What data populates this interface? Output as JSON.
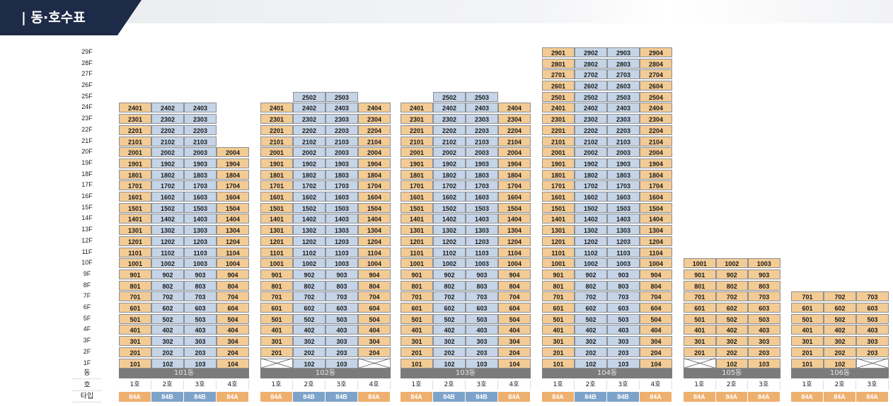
{
  "title": "| 동·호수표",
  "row_labels": {
    "dong": "동",
    "ho": "호",
    "type": "타입"
  },
  "floors": [
    "1F",
    "2F",
    "3F",
    "4F",
    "5F",
    "6F",
    "7F",
    "8F",
    "9F",
    "10F",
    "11F",
    "12F",
    "13F",
    "14F",
    "15F",
    "16F",
    "17F",
    "18F",
    "19F",
    "20F",
    "21F",
    "22F",
    "23F",
    "24F",
    "25F",
    "26F",
    "27F",
    "28F",
    "29F"
  ],
  "colors": {
    "type_84A": "#f3cb94",
    "type_84B": "#c5d4e6",
    "building_bar": "#7b7b7b",
    "title_bg": "#1d2a48"
  },
  "buildings": [
    {
      "name": "101동",
      "lines": [
        {
          "ho": "1호",
          "type": "84A",
          "floors": [
            1,
            24
          ],
          "missing": []
        },
        {
          "ho": "2호",
          "type": "84B",
          "floors": [
            1,
            24
          ],
          "missing": []
        },
        {
          "ho": "3호",
          "type": "84B",
          "floors": [
            1,
            24
          ],
          "missing": []
        },
        {
          "ho": "4호",
          "type": "84A",
          "floors": [
            1,
            20
          ],
          "missing": []
        }
      ]
    },
    {
      "name": "102동",
      "lines": [
        {
          "ho": "1호",
          "type": "84A",
          "floors": [
            1,
            24
          ],
          "missing": [
            1
          ]
        },
        {
          "ho": "2호",
          "type": "84B",
          "floors": [
            1,
            25
          ],
          "missing": []
        },
        {
          "ho": "3호",
          "type": "84B",
          "floors": [
            1,
            25
          ],
          "missing": []
        },
        {
          "ho": "4호",
          "type": "84A",
          "floors": [
            1,
            24
          ],
          "missing": [
            1
          ]
        }
      ]
    },
    {
      "name": "103동",
      "lines": [
        {
          "ho": "1호",
          "type": "84A",
          "floors": [
            1,
            24
          ],
          "missing": []
        },
        {
          "ho": "2호",
          "type": "84B",
          "floors": [
            1,
            25
          ],
          "missing": []
        },
        {
          "ho": "3호",
          "type": "84B",
          "floors": [
            1,
            25
          ],
          "missing": []
        },
        {
          "ho": "4호",
          "type": "84A",
          "floors": [
            1,
            24
          ],
          "missing": []
        }
      ]
    },
    {
      "name": "104동",
      "lines": [
        {
          "ho": "1호",
          "type": "84A",
          "floors": [
            1,
            29
          ],
          "missing": []
        },
        {
          "ho": "2호",
          "type": "84B",
          "floors": [
            1,
            29
          ],
          "missing": []
        },
        {
          "ho": "3호",
          "type": "84B",
          "floors": [
            1,
            29
          ],
          "missing": []
        },
        {
          "ho": "4호",
          "type": "84A",
          "floors": [
            1,
            29
          ],
          "missing": []
        }
      ]
    },
    {
      "name": "105동",
      "lines": [
        {
          "ho": "1호",
          "type": "84A",
          "floors": [
            1,
            10
          ],
          "missing": [
            1
          ]
        },
        {
          "ho": "2호",
          "type": "84A",
          "floors": [
            1,
            10
          ],
          "missing": []
        },
        {
          "ho": "3호",
          "type": "84A",
          "floors": [
            1,
            10
          ],
          "missing": []
        }
      ]
    },
    {
      "name": "106동",
      "lines": [
        {
          "ho": "1호",
          "type": "84A",
          "floors": [
            1,
            7
          ],
          "missing": []
        },
        {
          "ho": "2호",
          "type": "84A",
          "floors": [
            1,
            7
          ],
          "missing": []
        },
        {
          "ho": "3호",
          "type": "84A",
          "floors": [
            1,
            7
          ],
          "missing": [
            1
          ]
        }
      ]
    }
  ]
}
